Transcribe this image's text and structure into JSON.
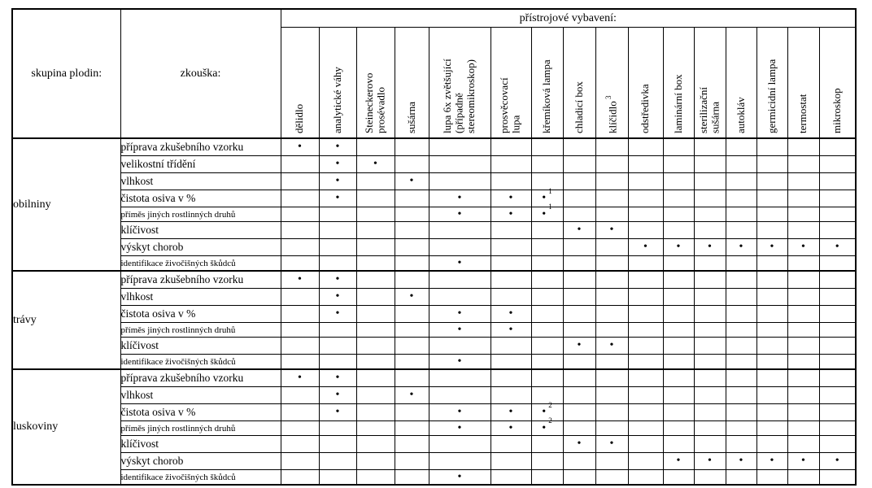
{
  "header": {
    "group_col": "skupina plodin:",
    "test_col": "zkouška:",
    "equipment": "přístrojové vybavení:",
    "columns": [
      {
        "label": "dělidlo",
        "sup": ""
      },
      {
        "label": "analytické váhy",
        "sup": ""
      },
      {
        "label": "Steineckerovo\nprosévadlo",
        "sup": ""
      },
      {
        "label": "sušárna",
        "sup": ""
      },
      {
        "label": "lupa 6x zvětšující\n(případně\nstereomikroskop)",
        "sup": ""
      },
      {
        "label": "prosvěcovací\nlupa",
        "sup": ""
      },
      {
        "label": "křemíková lampa",
        "sup": ""
      },
      {
        "label": "chladicí box",
        "sup": ""
      },
      {
        "label": "klíčidlo",
        "sup": "3"
      },
      {
        "label": "odstředivka",
        "sup": ""
      },
      {
        "label": "laminární box",
        "sup": ""
      },
      {
        "label": "sterilizační\nsušárna",
        "sup": ""
      },
      {
        "label": "autokláv",
        "sup": ""
      },
      {
        "label": "germicidní lampa",
        "sup": ""
      },
      {
        "label": "termostat",
        "sup": ""
      },
      {
        "label": "mikroskop",
        "sup": ""
      }
    ]
  },
  "groups": [
    {
      "name": "obilniny",
      "rows": [
        {
          "test": "příprava zkušebního vzorku",
          "size": "big",
          "marks": [
            "•",
            "•",
            "",
            "",
            "",
            "",
            "",
            "",
            "",
            "",
            "",
            "",
            "",
            "",
            "",
            ""
          ]
        },
        {
          "test": "velikostní třídění",
          "size": "big",
          "marks": [
            "",
            "•",
            "•",
            "",
            "",
            "",
            "",
            "",
            "",
            "",
            "",
            "",
            "",
            "",
            "",
            ""
          ]
        },
        {
          "test": "vlhkost",
          "size": "big",
          "marks": [
            "",
            "•",
            "",
            "•",
            "",
            "",
            "",
            "",
            "",
            "",
            "",
            "",
            "",
            "",
            "",
            ""
          ]
        },
        {
          "test": "čistota osiva v %",
          "size": "big",
          "marks": [
            "",
            "•",
            "",
            "",
            "•",
            "•",
            "•1",
            "",
            "",
            "",
            "",
            "",
            "",
            "",
            "",
            ""
          ]
        },
        {
          "test": "příměs jiných rostlinných druhů",
          "size": "small",
          "marks": [
            "",
            "",
            "",
            "",
            "•",
            "•",
            "•1",
            "",
            "",
            "",
            "",
            "",
            "",
            "",
            "",
            ""
          ]
        },
        {
          "test": "klíčivost",
          "size": "big",
          "marks": [
            "",
            "",
            "",
            "",
            "",
            "",
            "",
            "•",
            "•",
            "",
            "",
            "",
            "",
            "",
            "",
            ""
          ]
        },
        {
          "test": "výskyt chorob",
          "size": "big",
          "marks": [
            "",
            "",
            "",
            "",
            "",
            "",
            "",
            "",
            "",
            "•",
            "•",
            "•",
            "•",
            "•",
            "•",
            "•"
          ]
        },
        {
          "test": "identifikace živočišných škůdců",
          "size": "small",
          "marks": [
            "",
            "",
            "",
            "",
            "•",
            "",
            "",
            "",
            "",
            "",
            "",
            "",
            "",
            "",
            "",
            ""
          ]
        }
      ]
    },
    {
      "name": "trávy",
      "rows": [
        {
          "test": "příprava zkušebního vzorku",
          "size": "big",
          "marks": [
            "•",
            "•",
            "",
            "",
            "",
            "",
            "",
            "",
            "",
            "",
            "",
            "",
            "",
            "",
            "",
            ""
          ]
        },
        {
          "test": "vlhkost",
          "size": "big",
          "marks": [
            "",
            "•",
            "",
            "•",
            "",
            "",
            "",
            "",
            "",
            "",
            "",
            "",
            "",
            "",
            "",
            ""
          ]
        },
        {
          "test": "čistota osiva v %",
          "size": "big",
          "marks": [
            "",
            "•",
            "",
            "",
            "•",
            "•",
            "",
            "",
            "",
            "",
            "",
            "",
            "",
            "",
            "",
            ""
          ]
        },
        {
          "test": "příměs jiných rostlinných druhů",
          "size": "small",
          "marks": [
            "",
            "",
            "",
            "",
            "•",
            "•",
            "",
            "",
            "",
            "",
            "",
            "",
            "",
            "",
            "",
            ""
          ]
        },
        {
          "test": "klíčivost",
          "size": "big",
          "marks": [
            "",
            "",
            "",
            "",
            "",
            "",
            "",
            "•",
            "•",
            "",
            "",
            "",
            "",
            "",
            "",
            ""
          ]
        },
        {
          "test": "identifikace živočišných škůdců",
          "size": "small",
          "marks": [
            "",
            "",
            "",
            "",
            "•",
            "",
            "",
            "",
            "",
            "",
            "",
            "",
            "",
            "",
            "",
            ""
          ]
        }
      ]
    },
    {
      "name": "luskoviny",
      "rows": [
        {
          "test": "příprava zkušebního vzorku",
          "size": "big",
          "marks": [
            "•",
            "•",
            "",
            "",
            "",
            "",
            "",
            "",
            "",
            "",
            "",
            "",
            "",
            "",
            "",
            ""
          ]
        },
        {
          "test": "vlhkost",
          "size": "big",
          "marks": [
            "",
            "•",
            "",
            "•",
            "",
            "",
            "",
            "",
            "",
            "",
            "",
            "",
            "",
            "",
            "",
            ""
          ]
        },
        {
          "test": "čistota osiva v %",
          "size": "big",
          "marks": [
            "",
            "•",
            "",
            "",
            "•",
            "•",
            "•2",
            "",
            "",
            "",
            "",
            "",
            "",
            "",
            "",
            ""
          ]
        },
        {
          "test": "příměs jiných rostlinných druhů",
          "size": "small",
          "marks": [
            "",
            "",
            "",
            "",
            "•",
            "•",
            "•2",
            "",
            "",
            "",
            "",
            "",
            "",
            "",
            "",
            ""
          ]
        },
        {
          "test": "klíčivost",
          "size": "big",
          "marks": [
            "",
            "",
            "",
            "",
            "",
            "",
            "",
            "•",
            "•",
            "",
            "",
            "",
            "",
            "",
            "",
            ""
          ]
        },
        {
          "test": "výskyt chorob",
          "size": "big",
          "marks": [
            "",
            "",
            "",
            "",
            "",
            "",
            "",
            "",
            "",
            "",
            "•",
            "•",
            "•",
            "•",
            "•",
            "•"
          ]
        },
        {
          "test": "identifikace živočišných škůdců",
          "size": "small",
          "marks": [
            "",
            "",
            "",
            "",
            "•",
            "",
            "",
            "",
            "",
            "",
            "",
            "",
            "",
            "",
            "",
            ""
          ]
        }
      ]
    }
  ],
  "colors": {
    "border": "#000000",
    "text": "#000000",
    "background": "#ffffff"
  }
}
